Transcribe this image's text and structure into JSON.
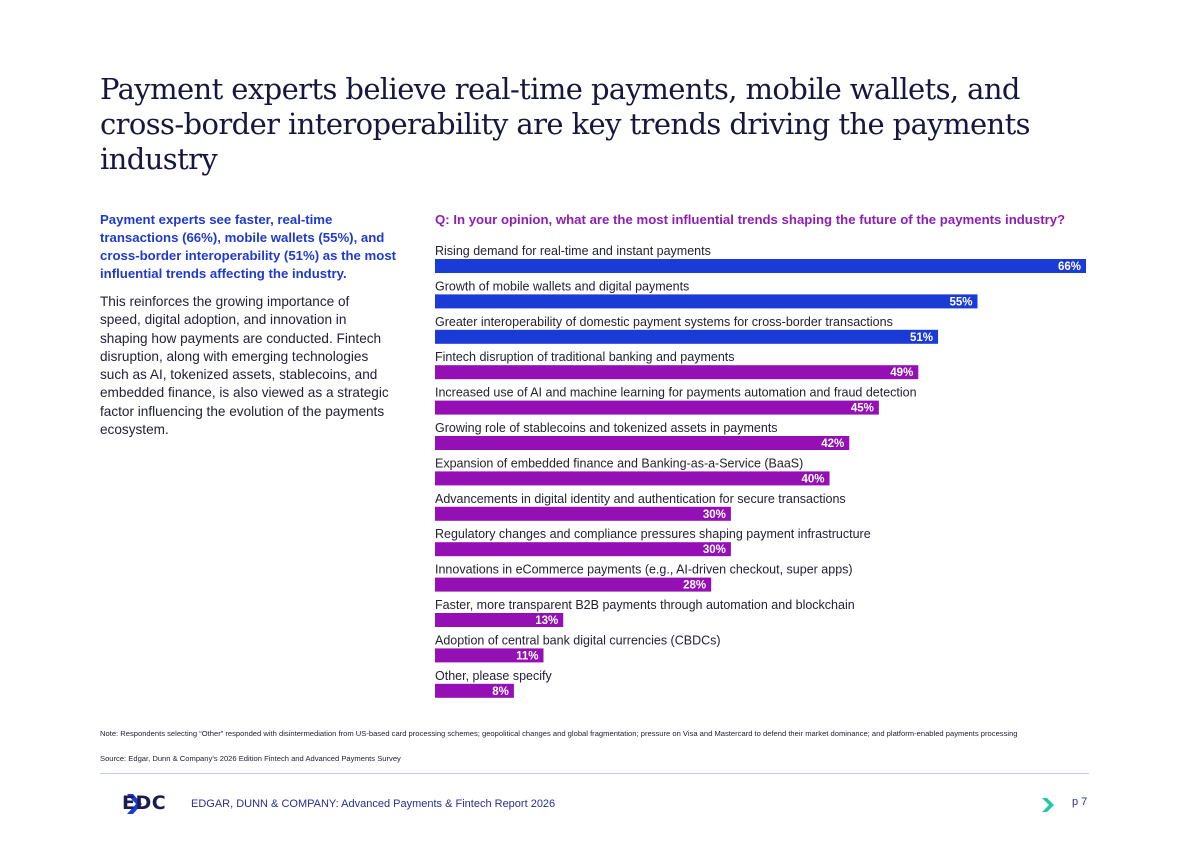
{
  "title": "Payment experts believe real-time payments, mobile wallets, and cross-border interoperability are key trends driving the payments industry",
  "lead": "Payment experts see faster, real-time transactions (66%), mobile wallets (55%), and cross-border interoperability (51%) as the most influential trends affecting the industry.",
  "body": "This reinforces the growing importance of speed, digital adoption, and innovation in shaping how payments are conducted. Fintech disruption, along with emerging technologies such as AI, tokenized assets, stablecoins, and embedded finance, is also viewed as a strategic factor influencing the evolution of the payments ecosystem.",
  "colors": {
    "highlight": "#1a3bd6",
    "other": "#9410b4",
    "question": "#8e1fb4",
    "lead": "#1f3ad0"
  },
  "chart_data": {
    "type": "bar",
    "orientation": "horizontal",
    "title": "Q: In your opinion, what are the most influential trends shaping the future of the payments industry?",
    "categories": [
      "Rising demand for real-time and instant payments",
      "Growth of mobile wallets and digital payments",
      "Greater interoperability of domestic payment systems for cross-border transactions",
      "Fintech disruption of traditional banking and payments",
      "Increased use of AI and machine learning for payments automation and fraud detection",
      "Growing role of stablecoins and tokenized assets in payments",
      "Expansion of embedded finance and Banking-as-a-Service (BaaS)",
      "Advancements in digital identity and authentication for secure transactions",
      "Regulatory changes and compliance pressures shaping payment infrastructure",
      "Innovations in eCommerce payments (e.g., AI-driven checkout, super apps)",
      "Faster, more transparent B2B payments through automation and blockchain",
      "Adoption of central bank digital currencies (CBDCs)",
      "Other, please specify"
    ],
    "values": [
      66,
      55,
      51,
      49,
      45,
      42,
      40,
      30,
      30,
      28,
      13,
      11,
      8
    ],
    "value_labels": [
      "66%",
      "55%",
      "51%",
      "49%",
      "45%",
      "42%",
      "40%",
      "30%",
      "30%",
      "28%",
      "13%",
      "11%",
      "8%"
    ],
    "highlighted_count": 3,
    "xlim": [
      0,
      66
    ]
  },
  "note": "Note: Respondents selecting “Other” responded with disintermediation from US-based card processing schemes; geopolitical changes and global fragmentation; pressure on Visa and Mastercard to defend their market dominance; and platform-enabled payments processing",
  "source": "Source: Edgar, Dunn & Company’s 2026 Edition Fintech and Advanced Payments Survey",
  "footer": {
    "logo_text": "EDC",
    "report": "EDGAR, DUNN & COMPANY: Advanced Payments & Fintech Report 2026",
    "page": "p 7"
  }
}
